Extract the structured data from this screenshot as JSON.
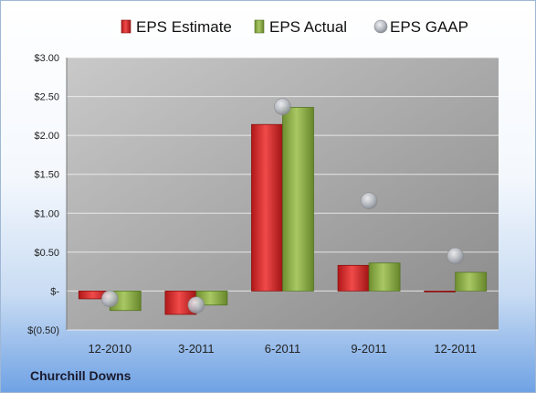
{
  "chart_data": {
    "type": "bar",
    "categories": [
      "12-2010",
      "3-2011",
      "6-2011",
      "9-2011",
      "12-2011"
    ],
    "series": [
      {
        "name": "EPS Estimate",
        "kind": "bar",
        "color": "#d42a2a",
        "values": [
          -0.1,
          -0.3,
          2.14,
          0.33,
          -0.01
        ]
      },
      {
        "name": "EPS Actual",
        "kind": "bar",
        "color": "#8fb04a",
        "values": [
          -0.25,
          -0.18,
          2.36,
          0.36,
          0.24
        ]
      },
      {
        "name": "EPS GAAP",
        "kind": "marker",
        "color": "#b8bcc4",
        "values": [
          -0.1,
          -0.18,
          2.37,
          1.16,
          0.45
        ]
      }
    ],
    "y_ticks": [
      3.0,
      2.5,
      2.0,
      1.5,
      1.0,
      0.5,
      0,
      -0.5
    ],
    "y_tick_labels": [
      "$3.00",
      "$2.50",
      "$2.00",
      "$1.50",
      "$1.00",
      "$0.50",
      "$-",
      "$(0.50)"
    ],
    "ylim": [
      -0.5,
      3.0
    ],
    "grid": true,
    "legend_position": "top"
  },
  "company_name": "Churchill Downs"
}
